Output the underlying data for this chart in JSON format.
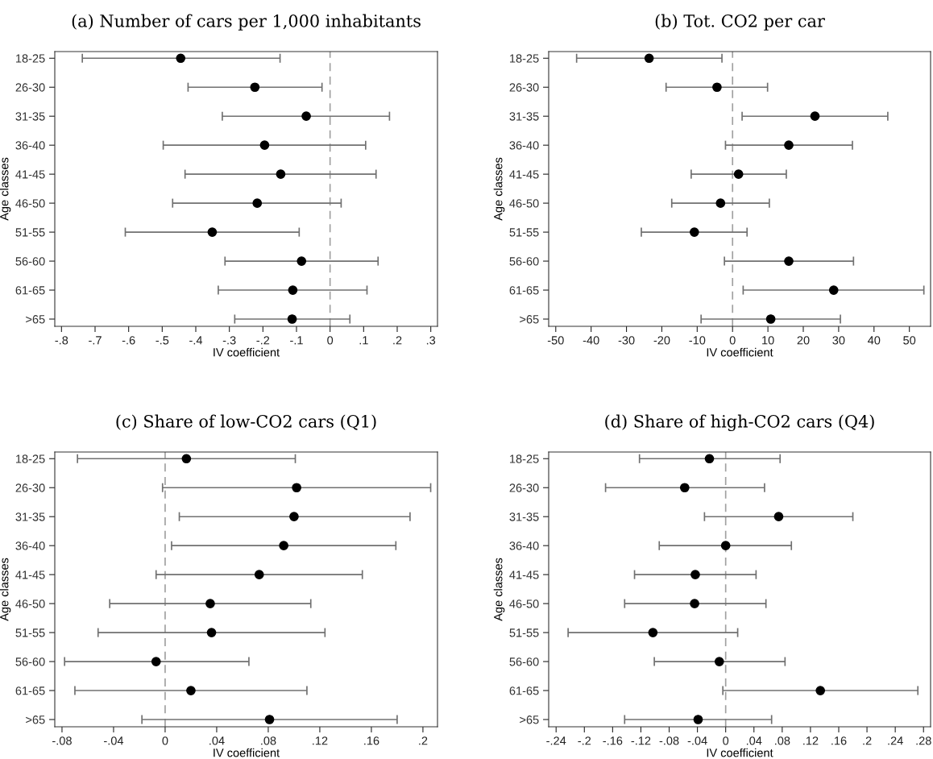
{
  "chart_data": [
    {
      "type": "scatter",
      "orientation": "horizontal",
      "title": "(a) Number of cars per 1,000 inhabitants",
      "xlabel": "IV coefficient",
      "ylabel": "Age classes",
      "marker": "circle",
      "grid": false,
      "legend": false,
      "categories": [
        "18-25",
        "26-30",
        "31-35",
        "36-40",
        "41-45",
        "46-50",
        "51-55",
        "56-60",
        "61-65",
        ">65"
      ],
      "series": [
        {
          "color": "#000000",
          "values": [
            -0.445,
            -0.224,
            -0.071,
            -0.195,
            -0.147,
            -0.217,
            -0.351,
            -0.085,
            -0.111,
            -0.113
          ],
          "errors": [
            [
              -0.738,
              -0.149
            ],
            [
              -0.423,
              -0.024
            ],
            [
              -0.321,
              0.177
            ],
            [
              -0.497,
              0.106
            ],
            [
              -0.432,
              0.137
            ],
            [
              -0.469,
              0.033
            ],
            [
              -0.61,
              -0.092
            ],
            [
              -0.313,
              0.143
            ],
            [
              -0.333,
              0.11
            ],
            [
              -0.284,
              0.059
            ]
          ]
        }
      ],
      "xlim": [
        -0.82,
        0.32
      ],
      "xticks": [
        {
          "value": -0.8,
          "label": "-.8"
        },
        {
          "value": -0.7,
          "label": "-.7"
        },
        {
          "value": -0.6,
          "label": "-.6"
        },
        {
          "value": -0.5,
          "label": "-.5"
        },
        {
          "value": -0.4,
          "label": "-.4"
        },
        {
          "value": -0.3,
          "label": "-.3"
        },
        {
          "value": -0.2,
          "label": "-.2"
        },
        {
          "value": -0.1,
          "label": "-.1"
        },
        0,
        {
          "value": 0.1,
          "label": ".1"
        },
        {
          "value": 0.2,
          "label": ".2"
        },
        {
          "value": 0.3,
          "label": ".3"
        }
      ],
      "ref_lines": [
        {
          "axis": "x",
          "value": 0,
          "color": "#a0a0a0",
          "line_style": "dashed"
        }
      ]
    },
    {
      "type": "scatter",
      "orientation": "horizontal",
      "title": "(b) Tot. CO2 per car",
      "xlabel": "IV coefficient",
      "ylabel": "Age classes",
      "marker": "circle",
      "grid": false,
      "legend": false,
      "categories": [
        "18-25",
        "26-30",
        "31-35",
        "36-40",
        "41-45",
        "46-50",
        "51-55",
        "56-60",
        "61-65",
        ">65"
      ],
      "series": [
        {
          "color": "#000000",
          "values": [
            -23.6,
            -4.4,
            23.3,
            15.9,
            1.7,
            -3.4,
            -10.8,
            15.9,
            28.6,
            10.8
          ],
          "errors": [
            [
              -44.1,
              -3.0
            ],
            [
              -18.8,
              9.9
            ],
            [
              2.7,
              43.9
            ],
            [
              -2.0,
              33.9
            ],
            [
              -11.7,
              15.2
            ],
            [
              -17.2,
              10.4
            ],
            [
              -25.8,
              4.1
            ],
            [
              -2.3,
              34.2
            ],
            [
              3.0,
              54.1
            ],
            [
              -8.9,
              30.5
            ]
          ]
        }
      ],
      "xlim": [
        -52,
        56
      ],
      "xticks": [
        -50,
        -40,
        -30,
        -20,
        -10,
        0,
        10,
        20,
        30,
        40,
        50
      ],
      "ref_lines": [
        {
          "axis": "x",
          "value": 0,
          "color": "#a0a0a0",
          "line_style": "dashed"
        }
      ]
    },
    {
      "type": "scatter",
      "orientation": "horizontal",
      "title": "(c) Share of low-CO2 cars (Q1)",
      "xlabel": "IV coefficient",
      "ylabel": "Age classes",
      "marker": "circle",
      "grid": false,
      "legend": false,
      "categories": [
        "18-25",
        "26-30",
        "31-35",
        "36-40",
        "41-45",
        "46-50",
        "51-55",
        "56-60",
        "61-65",
        ">65"
      ],
      "series": [
        {
          "color": "#000000",
          "values": [
            0.0165,
            0.102,
            0.1,
            0.092,
            0.073,
            0.035,
            0.036,
            -0.007,
            0.02,
            0.081
          ],
          "errors": [
            [
              -0.068,
              0.101
            ],
            [
              -0.002,
              0.206
            ],
            [
              0.011,
              0.19
            ],
            [
              0.005,
              0.179
            ],
            [
              -0.007,
              0.153
            ],
            [
              -0.043,
              0.113
            ],
            [
              -0.052,
              0.124
            ],
            [
              -0.078,
              0.065
            ],
            [
              -0.07,
              0.11
            ],
            [
              -0.018,
              0.18
            ]
          ]
        }
      ],
      "xlim": [
        -0.0856,
        0.2113
      ],
      "xticks": [
        {
          "value": -0.08,
          "label": "-.08"
        },
        {
          "value": -0.04,
          "label": "-.04"
        },
        0,
        {
          "value": 0.04,
          "label": ".04"
        },
        {
          "value": 0.08,
          "label": ".08"
        },
        {
          "value": 0.12,
          "label": ".12"
        },
        {
          "value": 0.16,
          "label": ".16"
        },
        {
          "value": 0.2,
          "label": ".2"
        }
      ],
      "ref_lines": [
        {
          "axis": "x",
          "value": 0,
          "color": "#a0a0a0",
          "line_style": "dashed"
        }
      ]
    },
    {
      "type": "scatter",
      "orientation": "horizontal",
      "title": "(d) Share of high-CO2 cars (Q4)",
      "xlabel": "IV coefficient",
      "ylabel": "Age classes",
      "marker": "circle",
      "grid": false,
      "legend": false,
      "categories": [
        "18-25",
        "26-30",
        "31-35",
        "36-40",
        "41-45",
        "46-50",
        "51-55",
        "56-60",
        "61-65",
        ">65"
      ],
      "series": [
        {
          "color": "#000000",
          "values": [
            -0.023,
            -0.058,
            0.075,
            0.0,
            -0.043,
            -0.044,
            -0.103,
            -0.009,
            0.134,
            -0.039
          ],
          "errors": [
            [
              -0.122,
              0.077
            ],
            [
              -0.17,
              0.055
            ],
            [
              -0.03,
              0.18
            ],
            [
              -0.094,
              0.093
            ],
            [
              -0.129,
              0.043
            ],
            [
              -0.143,
              0.057
            ],
            [
              -0.223,
              0.017
            ],
            [
              -0.101,
              0.084
            ],
            [
              -0.004,
              0.272
            ],
            [
              -0.143,
              0.065
            ]
          ]
        }
      ],
      "xlim": [
        -0.2505,
        0.29
      ],
      "xticks": [
        {
          "value": -0.24,
          "label": "-.24"
        },
        {
          "value": -0.2,
          "label": "-.2"
        },
        {
          "value": -0.16,
          "label": "-.16"
        },
        {
          "value": -0.12,
          "label": "-.12"
        },
        {
          "value": -0.08,
          "label": "-.08"
        },
        {
          "value": -0.04,
          "label": "-.04"
        },
        0,
        {
          "value": 0.04,
          "label": ".04"
        },
        {
          "value": 0.08,
          "label": ".08"
        },
        {
          "value": 0.12,
          "label": ".12"
        },
        {
          "value": 0.16,
          "label": ".16"
        },
        {
          "value": 0.2,
          "label": ".2"
        },
        {
          "value": 0.24,
          "label": ".24"
        },
        {
          "value": 0.28,
          "label": ".28"
        }
      ],
      "ref_lines": [
        {
          "axis": "x",
          "value": 0,
          "color": "#a0a0a0",
          "line_style": "dashed"
        }
      ]
    }
  ]
}
